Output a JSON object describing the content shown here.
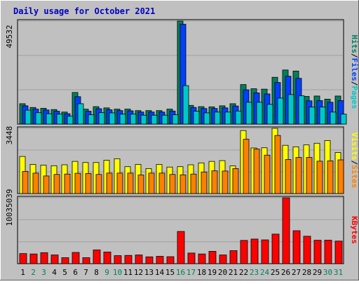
{
  "chart_data": [
    {
      "type": "bar",
      "title": "Daily usage for October 2021",
      "panel": "hits-files-pages",
      "ymax_label": "49532",
      "legend": [
        "Pages",
        "Files",
        "Hits"
      ],
      "legend_colors": [
        "#00c8c8",
        "#0040ff",
        "#00805c"
      ],
      "categories": [
        "1",
        "2",
        "3",
        "4",
        "5",
        "6",
        "7",
        "8",
        "9",
        "10",
        "11",
        "12",
        "13",
        "14",
        "15",
        "16",
        "17",
        "18",
        "19",
        "20",
        "21",
        "22",
        "23",
        "24",
        "25",
        "26",
        "27",
        "28",
        "29",
        "30",
        "31"
      ],
      "series": [
        {
          "name": "Hits",
          "values": [
            9800,
            8000,
            7600,
            7000,
            5800,
            15200,
            7200,
            8400,
            7800,
            7200,
            7200,
            6500,
            6500,
            6500,
            7200,
            49532,
            9000,
            8400,
            8300,
            8800,
            9800,
            19000,
            17000,
            16800,
            22500,
            26000,
            25500,
            13300,
            13500,
            12000,
            13500
          ]
        },
        {
          "name": "Files",
          "values": [
            8800,
            7200,
            6800,
            6200,
            5000,
            13200,
            6200,
            7400,
            6900,
            6500,
            6400,
            5800,
            5800,
            5800,
            6300,
            48000,
            8000,
            7500,
            7500,
            7800,
            8700,
            16500,
            15000,
            14500,
            20000,
            23000,
            22000,
            11200,
            11300,
            10500,
            11300
          ]
        },
        {
          "name": "Pages",
          "values": [
            6700,
            5500,
            5000,
            4800,
            3800,
            9800,
            4500,
            5500,
            5400,
            4800,
            4800,
            4300,
            4300,
            4300,
            4500,
            18500,
            6200,
            5400,
            5800,
            5800,
            6300,
            10500,
            10500,
            9500,
            12500,
            14200,
            13600,
            8200,
            8200,
            5800,
            4800
          ]
        }
      ],
      "colors": {
        "Hits": "#00805c",
        "Files": "#0040ff",
        "Pages": "#00c8c8"
      }
    },
    {
      "type": "bar",
      "panel": "visits-sites",
      "ymax_label": "3448",
      "legend": [
        "Sites",
        "Visits"
      ],
      "legend_colors": [
        "#ff8000",
        "#ffff00"
      ],
      "categories": [
        "1",
        "2",
        "3",
        "4",
        "5",
        "6",
        "7",
        "8",
        "9",
        "10",
        "11",
        "12",
        "13",
        "14",
        "15",
        "16",
        "17",
        "18",
        "19",
        "20",
        "21",
        "22",
        "23",
        "24",
        "25",
        "26",
        "27",
        "28",
        "29",
        "30",
        "31"
      ],
      "series": [
        {
          "name": "Visits",
          "values": [
            1960,
            1540,
            1500,
            1470,
            1520,
            1700,
            1640,
            1640,
            1760,
            1840,
            1420,
            1540,
            1320,
            1540,
            1400,
            1420,
            1520,
            1620,
            1700,
            1740,
            1460,
            3330,
            2410,
            2420,
            3448,
            2550,
            2470,
            2570,
            2660,
            2800,
            2170
          ]
        },
        {
          "name": "Sites",
          "values": [
            1170,
            1080,
            930,
            1010,
            1030,
            1070,
            1060,
            1010,
            1080,
            1080,
            1080,
            980,
            1080,
            1080,
            1010,
            990,
            1030,
            1140,
            1200,
            1190,
            1320,
            2870,
            2350,
            2030,
            3070,
            1800,
            1910,
            1910,
            1710,
            1730,
            1780
          ]
        }
      ],
      "colors": {
        "Visits": "#ffff00",
        "Sites": "#ff8000"
      }
    },
    {
      "type": "bar",
      "panel": "kbytes",
      "ymax_label": "10035039",
      "legend": [
        "KBytes"
      ],
      "legend_colors": [
        "#ff0000"
      ],
      "categories": [
        "1",
        "2",
        "3",
        "4",
        "5",
        "6",
        "7",
        "8",
        "9",
        "10",
        "11",
        "12",
        "13",
        "14",
        "15",
        "16",
        "17",
        "18",
        "19",
        "20",
        "21",
        "22",
        "23",
        "24",
        "25",
        "26",
        "27",
        "28",
        "29",
        "30",
        "31"
      ],
      "series": [
        {
          "name": "KBytes",
          "values": [
            1330000,
            1280000,
            1450000,
            1150000,
            790000,
            1480000,
            790000,
            1820000,
            1540000,
            1060000,
            1090000,
            1150000,
            900000,
            970000,
            920000,
            4250000,
            1400000,
            1280000,
            1630000,
            1150000,
            1720000,
            3070000,
            3250000,
            3140000,
            3900000,
            8700000,
            4350000,
            3620000,
            3090000,
            3100000,
            2980000
          ]
        }
      ],
      "colors": {
        "KBytes": "#ff0000"
      }
    }
  ],
  "title": "Daily usage for October 2021",
  "weekend_days": [
    "2",
    "3",
    "9",
    "10",
    "16",
    "17",
    "23",
    "24",
    "30",
    "31"
  ],
  "colors": {
    "title": "#0000c0",
    "weekday_label": "#000000",
    "weekend_label": "#00805c",
    "plot_bg": "#c0c0c0",
    "panel_bg": "#c0c0c0",
    "gridline": "#a0a0a0"
  }
}
